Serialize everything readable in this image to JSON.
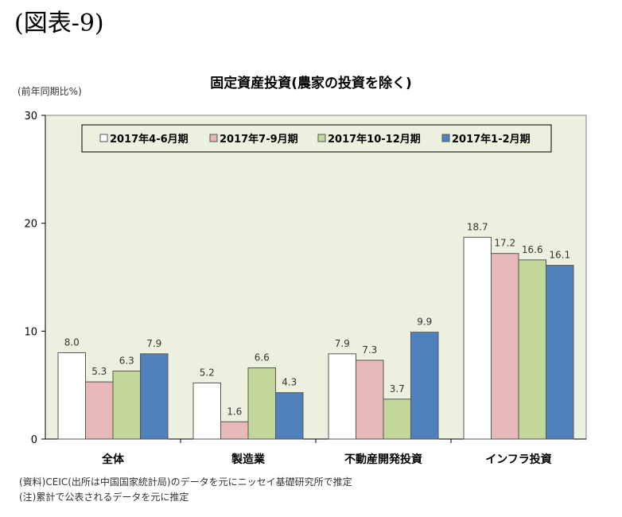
{
  "heading": "(図表-9)",
  "chart_data": {
    "type": "bar",
    "title": "固定資産投資(農家の投資を除く)",
    "ylabel": "(前年同期比%)",
    "xlabel": "",
    "ylim": [
      0,
      30
    ],
    "yticks": [
      "0",
      "10",
      "20",
      "30"
    ],
    "grid": false,
    "legend_position": "top",
    "categories": [
      "全体",
      "製造業",
      "不動産開発投資",
      "インフラ投資"
    ],
    "series": [
      {
        "name": "2017年4-6月期",
        "color": "#ffffff",
        "values": [
          8.0,
          5.2,
          7.9,
          18.7
        ],
        "labels": [
          "8.0",
          "5.2",
          "7.9",
          "18.7"
        ]
      },
      {
        "name": "2017年7-9月期",
        "color": "#e6b8b7",
        "values": [
          5.3,
          1.6,
          7.3,
          17.2
        ],
        "labels": [
          "5.3",
          "1.6",
          "7.3",
          "17.2"
        ]
      },
      {
        "name": "2017年10-12月期",
        "color": "#c4d79b",
        "values": [
          6.3,
          6.6,
          3.7,
          16.6
        ],
        "labels": [
          "6.3",
          "6.6",
          "3.7",
          "16.6"
        ]
      },
      {
        "name": "2017年1-2月期",
        "color": "#4f81bd",
        "values": [
          7.9,
          4.3,
          9.9,
          16.1
        ],
        "labels": [
          "7.9",
          "4.3",
          "9.9",
          "16.1"
        ]
      }
    ],
    "plot_background": "#ebf1de"
  },
  "notes": [
    "(資料)CEIC(出所は中国国家統計局)のデータを元にニッセイ基礎研究所で推定",
    "(注)累計で公表されるデータを元に推定"
  ]
}
